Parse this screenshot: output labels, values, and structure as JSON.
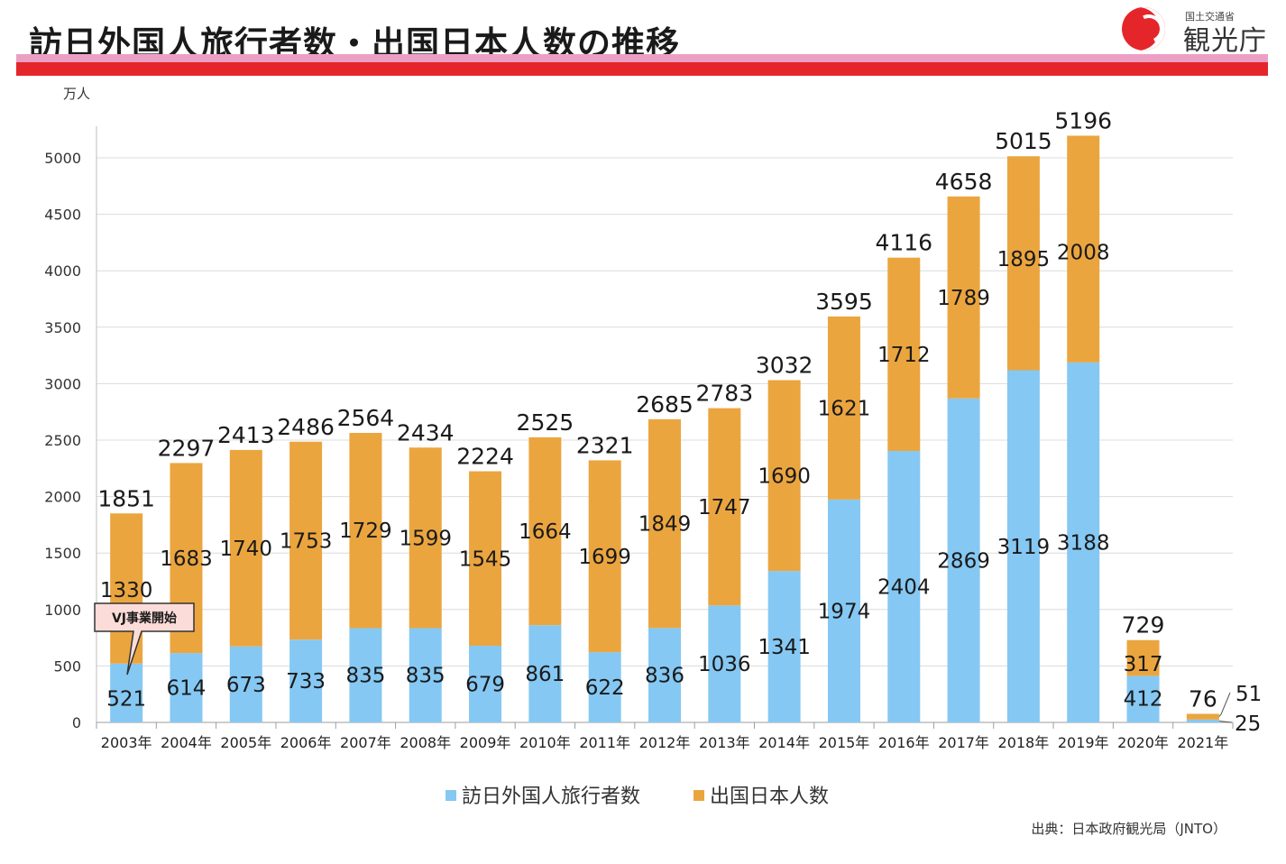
{
  "header": {
    "title": "訪日外国人旅行者数・出国日本人数の推移",
    "logo_sub": "国土交通省",
    "logo_main": "観光庁"
  },
  "source": "出典：日本政府観光局（JNTO）",
  "colors": {
    "visitors": "#85c8f3",
    "departures": "#eba53f",
    "title_bar_red": "#e4262b",
    "title_bar_pink": "#ec9fc4"
  },
  "chart_data": {
    "type": "bar",
    "stacked": true,
    "unit_label": "万人",
    "categories": [
      "2003年",
      "2004年",
      "2005年",
      "2006年",
      "2007年",
      "2008年",
      "2009年",
      "2010年",
      "2011年",
      "2012年",
      "2013年",
      "2014年",
      "2015年",
      "2016年",
      "2017年",
      "2018年",
      "2019年",
      "2020年",
      "2021年"
    ],
    "series": [
      {
        "name": "訪日外国人旅行者数",
        "values": [
          521,
          614,
          673,
          733,
          835,
          835,
          679,
          861,
          622,
          836,
          1036,
          1341,
          1974,
          2404,
          2869,
          3119,
          3188,
          412,
          25
        ]
      },
      {
        "name": "出国日本人数",
        "values": [
          1330,
          1683,
          1740,
          1753,
          1729,
          1599,
          1545,
          1664,
          1699,
          1849,
          1747,
          1690,
          1621,
          1712,
          1789,
          1895,
          2008,
          317,
          51
        ]
      }
    ],
    "totals": [
      1851,
      2297,
      2413,
      2486,
      2564,
      2434,
      2224,
      2525,
      2321,
      2685,
      2783,
      3032,
      3595,
      4116,
      4658,
      5015,
      5196,
      729,
      76
    ],
    "ylim": [
      0,
      5250
    ],
    "yticks": [
      0,
      500,
      1000,
      1500,
      2000,
      2500,
      3000,
      3500,
      4000,
      4500,
      5000
    ],
    "grid": true,
    "legend_position": "bottom",
    "annotation": "VJ事業開始"
  }
}
